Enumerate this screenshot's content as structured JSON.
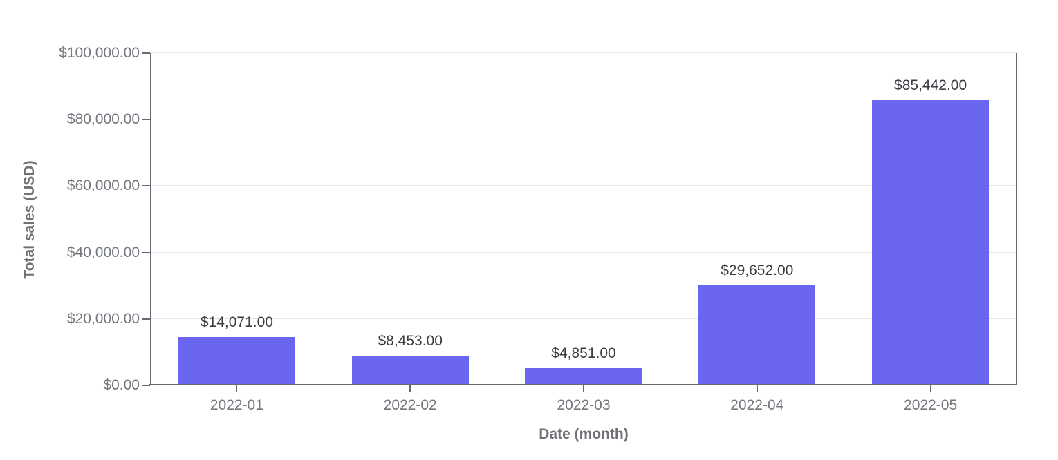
{
  "page": {
    "background": "#FFFFFF"
  },
  "chart_data": {
    "type": "bar",
    "xlabel": "Date (month)",
    "ylabel": "Total sales (USD)",
    "categories": [
      "2022-01",
      "2022-02",
      "2022-03",
      "2022-04",
      "2022-05"
    ],
    "values": [
      14071,
      8453,
      4851,
      29652,
      85442
    ],
    "value_labels": [
      "$14,071.00",
      "$8,453.00",
      "$4,851.00",
      "$29,652.00",
      "$85,442.00"
    ],
    "ylim": [
      0,
      100000
    ],
    "y_ticks": [
      0,
      20000,
      40000,
      60000,
      80000,
      100000
    ],
    "y_tick_labels": [
      "$0.00",
      "$20,000.00",
      "$40,000.00",
      "$60,000.00",
      "$80,000.00",
      "$100,000.00"
    ],
    "grid": true,
    "legend": "none",
    "bar_width_pct": 13.5,
    "colors": {
      "bar": "#6A66EF",
      "axis_line": "#66696F",
      "gridline": "#E3E5F0",
      "tick_label_text": "#73777E",
      "axis_title_text": "#6E7277",
      "value_label_text": "#3A3D42",
      "background": "#FFFFFF"
    }
  }
}
